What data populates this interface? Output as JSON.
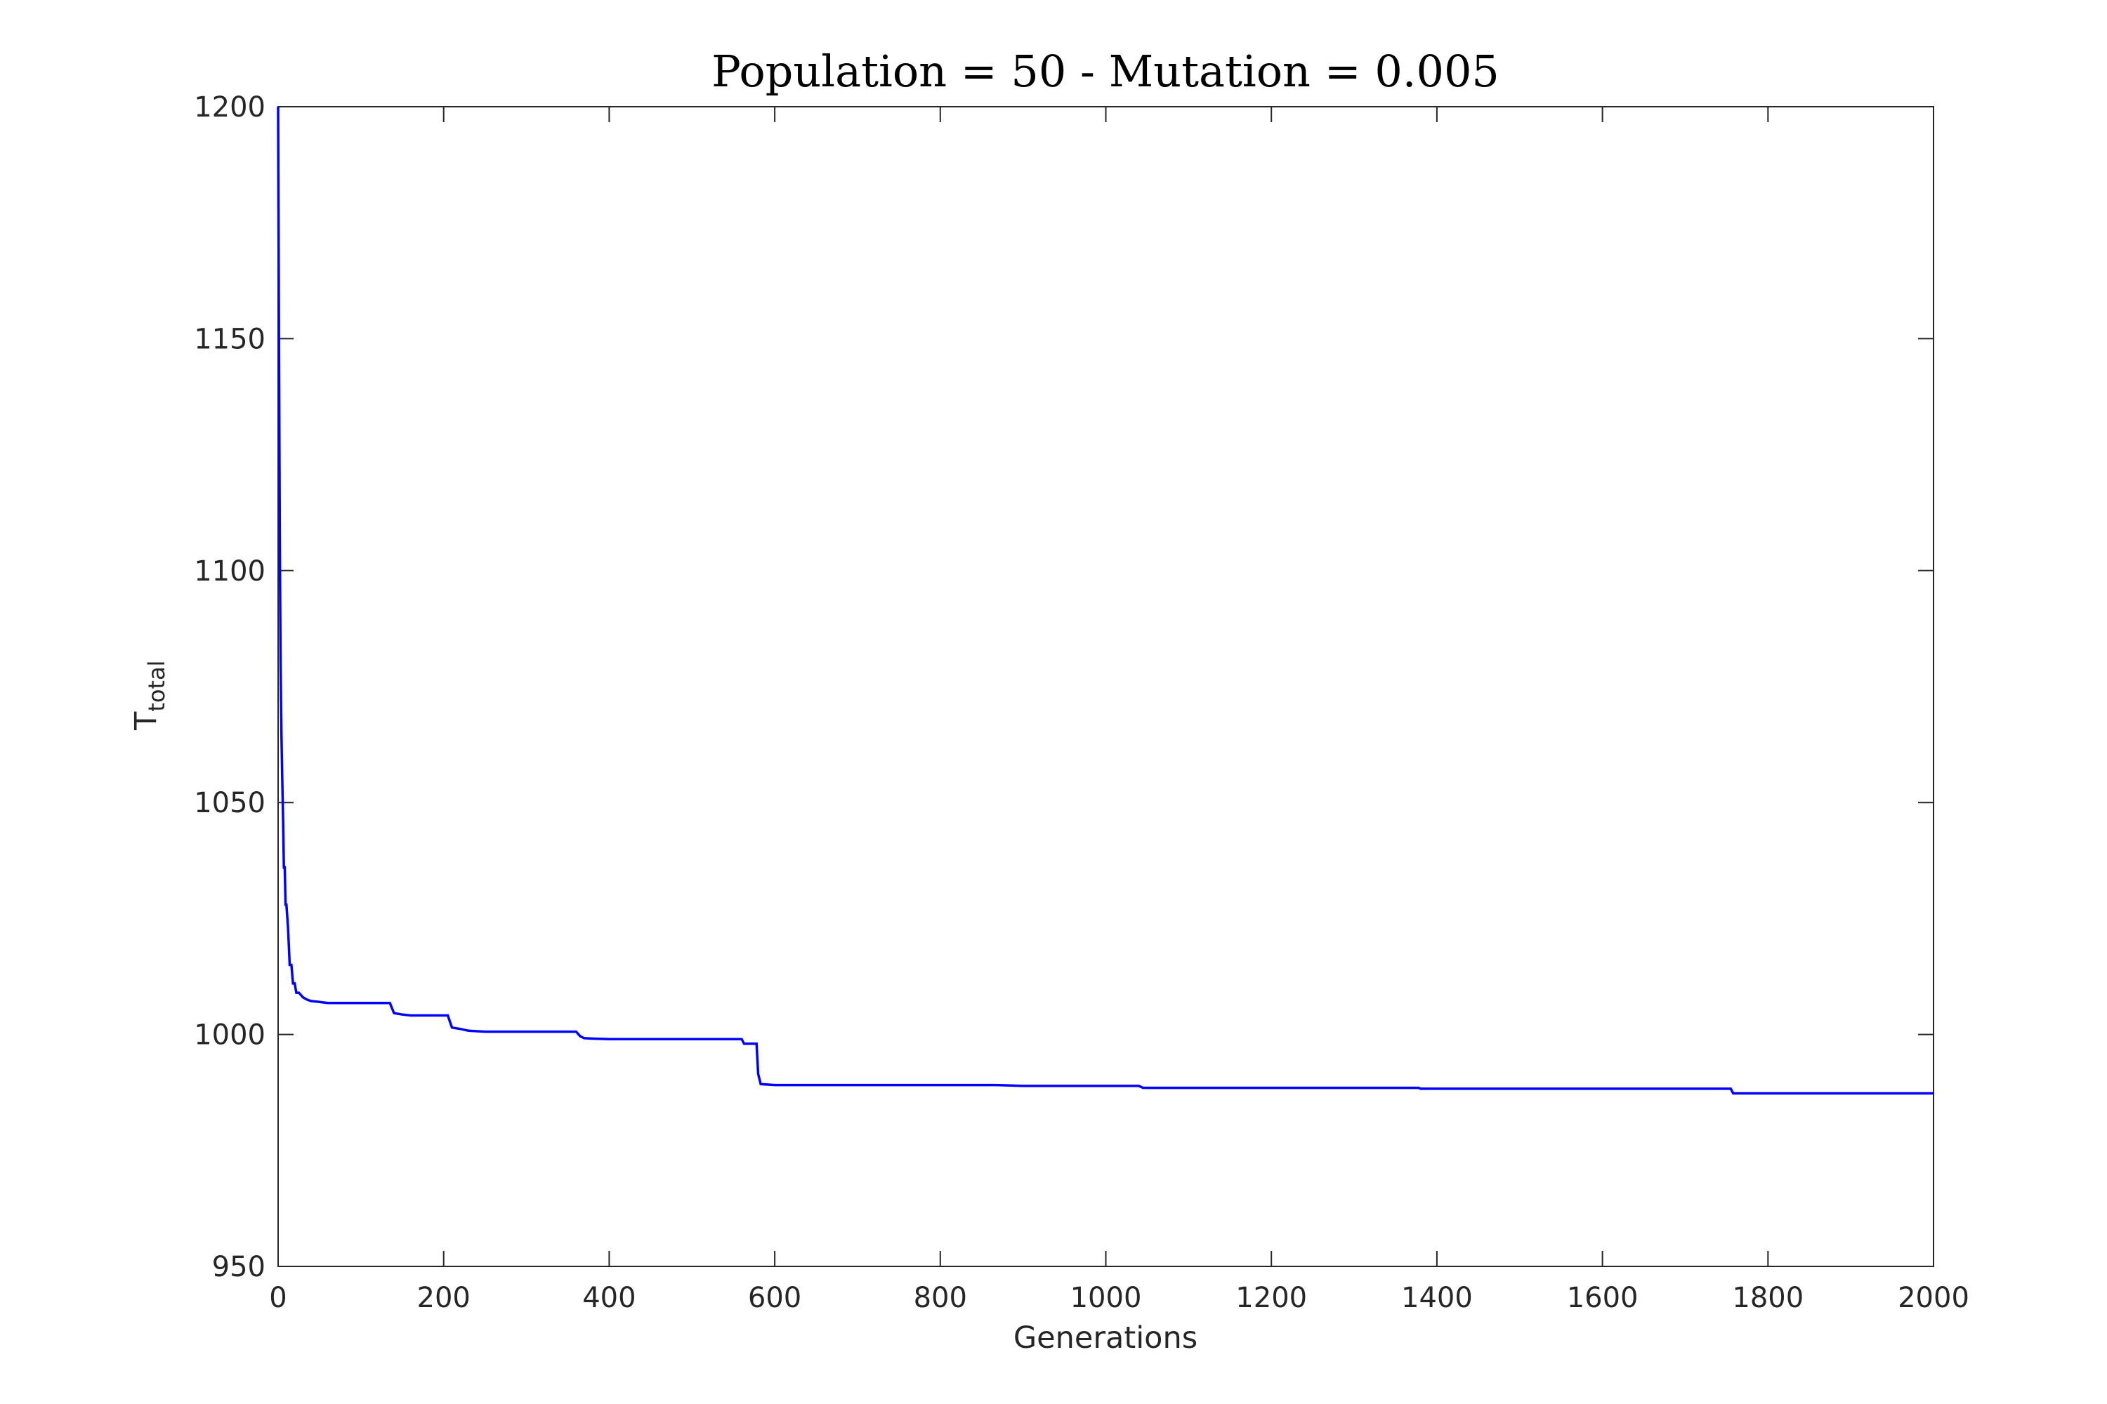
{
  "chart_data": {
    "type": "line",
    "title": "Population = 50 - Mutation = 0.005",
    "xlabel": "Generations",
    "ylabel": "T",
    "ylabel_subscript": "total",
    "xlim": [
      0,
      2000
    ],
    "ylim": [
      950,
      1200
    ],
    "xticks": [
      0,
      200,
      400,
      600,
      800,
      1000,
      1200,
      1400,
      1600,
      1800,
      2000
    ],
    "yticks": [
      950,
      1000,
      1050,
      1100,
      1150,
      1200
    ],
    "grid": false,
    "line_color": "#0000ff",
    "series": [
      {
        "step": true,
        "x": [
          0,
          1,
          2,
          3,
          4,
          5,
          6,
          7,
          8,
          9,
          10,
          12,
          14,
          16,
          18,
          20,
          22,
          25,
          30,
          35,
          40,
          50,
          60,
          80,
          100,
          135,
          140,
          150,
          160,
          205,
          210,
          220,
          230,
          250,
          300,
          360,
          365,
          370,
          380,
          400,
          500,
          560,
          563,
          578,
          580,
          583,
          600,
          700,
          868,
          900,
          1000,
          1040,
          1045,
          1100,
          1200,
          1378,
          1380,
          1500,
          1510,
          1600,
          1755,
          1758,
          1800,
          1900,
          2000
        ],
        "y": [
          1200,
          1150,
          1107,
          1080,
          1065,
          1055,
          1046,
          1036,
          1036,
          1028,
          1028,
          1023,
          1015,
          1015,
          1011,
          1011,
          1009,
          1009,
          1008,
          1007.5,
          1007.2,
          1007,
          1006.8,
          1006.8,
          1006.8,
          1006.8,
          1004.6,
          1004.3,
          1004.1,
          1004.1,
          1001.5,
          1001.2,
          1000.8,
          1000.6,
          1000.6,
          1000.6,
          999.6,
          999.2,
          999.1,
          999.0,
          999.0,
          999.0,
          998.0,
          998.0,
          991.5,
          989.3,
          989.1,
          989.1,
          989.1,
          988.9,
          988.9,
          988.9,
          988.5,
          988.5,
          988.5,
          988.5,
          988.3,
          988.3,
          988.3,
          988.3,
          988.3,
          987.3,
          987.3,
          987.3,
          987.3
        ]
      }
    ]
  }
}
